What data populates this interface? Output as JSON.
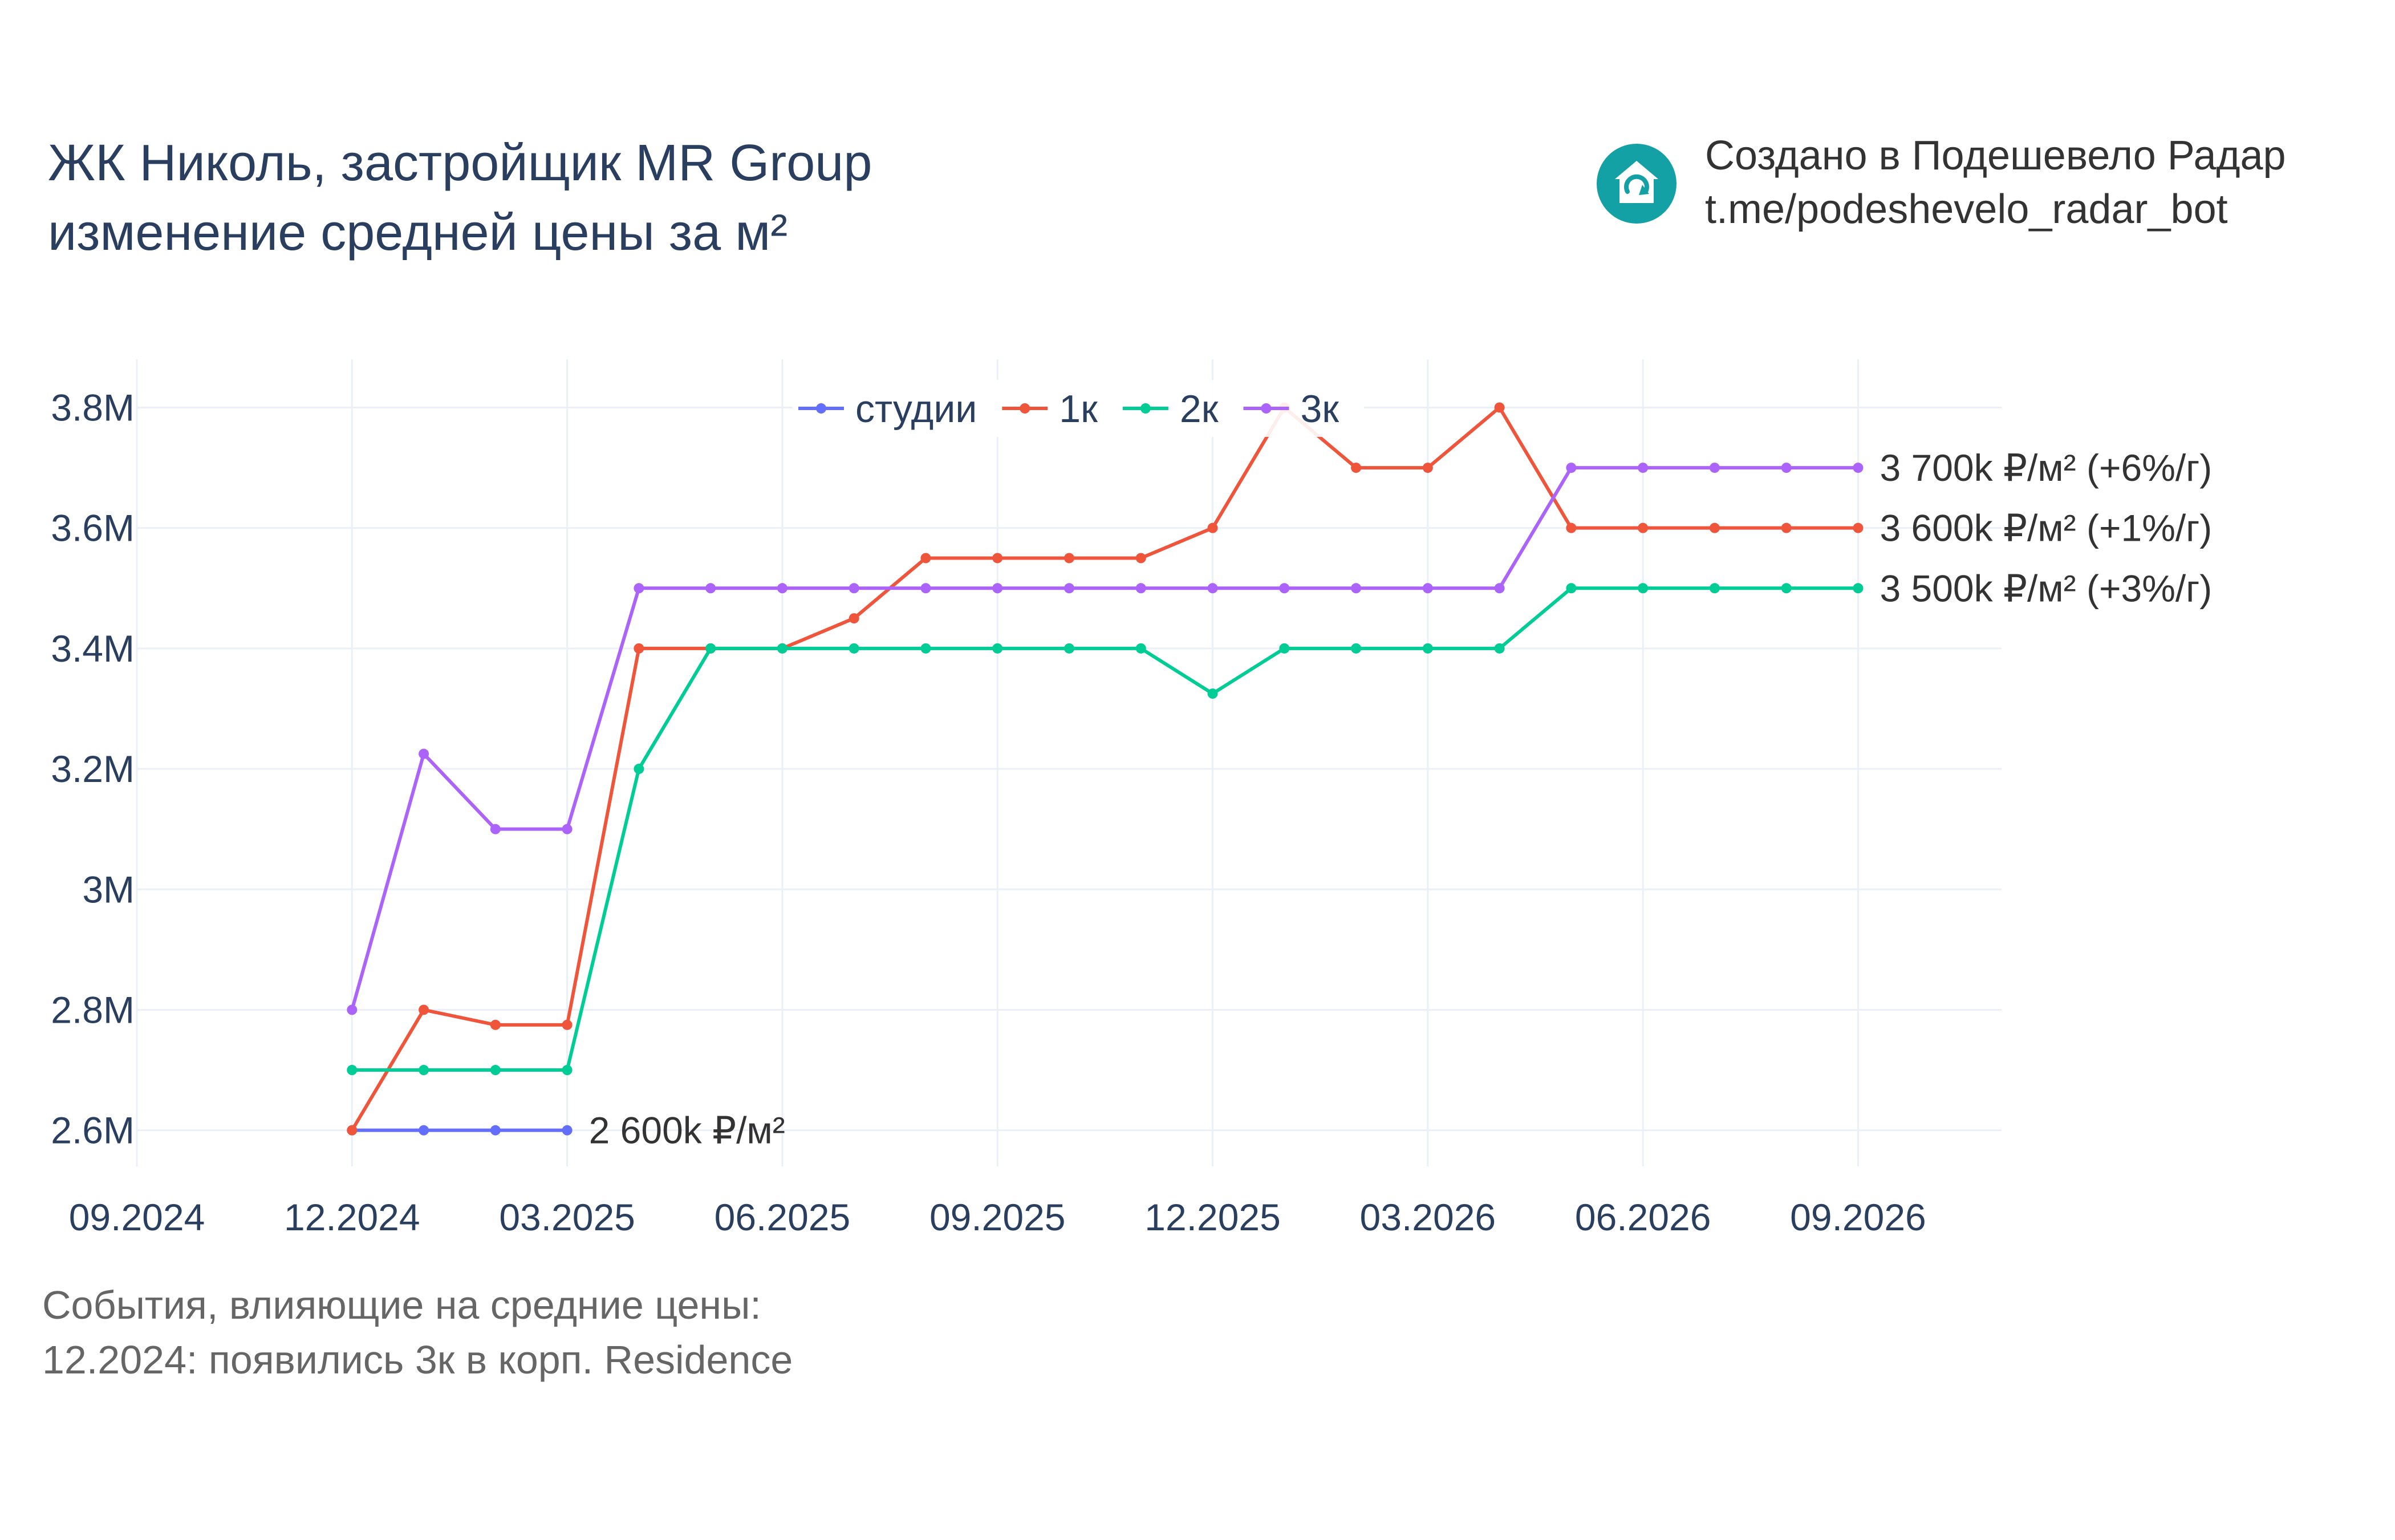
{
  "title": {
    "line1": "ЖК Николь, застройщик MR Group",
    "line2": "изменение средней цены за м²"
  },
  "brand": {
    "line1": "Создано в Подешевело Радар",
    "line2": "t.me/podeshevelo_radar_bot",
    "logo_color": "#14a1a5",
    "icon": "house-refresh-icon"
  },
  "events": {
    "heading": "События, влияющие на средние цены:",
    "items": [
      "12.2024: появились 3к в корп. Residence"
    ]
  },
  "chart_data": {
    "type": "line",
    "x_tick_labels": [
      "09.2024",
      "12.2024",
      "03.2025",
      "06.2025",
      "09.2025",
      "12.2025",
      "03.2026",
      "06.2026",
      "09.2026"
    ],
    "y_tick_labels": [
      "2.6M",
      "2.8M",
      "3M",
      "3.2M",
      "3.4M",
      "3.6M",
      "3.8M"
    ],
    "ylim": [
      2540000,
      3880000
    ],
    "xlim": [
      "2024-09",
      "2026-11"
    ],
    "grid": true,
    "legend_position": "top-center",
    "x": [
      "2024-12",
      "2025-01",
      "2025-02",
      "2025-03",
      "2025-04",
      "2025-05",
      "2025-06",
      "2025-07",
      "2025-08",
      "2025-09",
      "2025-10",
      "2025-11",
      "2025-12",
      "2026-01",
      "2026-02",
      "2026-03",
      "2026-04",
      "2026-05",
      "2026-06",
      "2026-07",
      "2026-08",
      "2026-09"
    ],
    "series": [
      {
        "name": "студии",
        "color": "#636efa",
        "values": [
          2600000,
          2600000,
          2600000,
          2600000,
          null,
          null,
          null,
          null,
          null,
          null,
          null,
          null,
          null,
          null,
          null,
          null,
          null,
          null,
          null,
          null,
          null,
          null
        ],
        "end_label": "2 600k ₽/м²"
      },
      {
        "name": "1к",
        "color": "#ef553b",
        "values": [
          2600000,
          2800000,
          2775000,
          2775000,
          3400000,
          3400000,
          3400000,
          3450000,
          3550000,
          3550000,
          3550000,
          3550000,
          3600000,
          3800000,
          3700000,
          3700000,
          3800000,
          3600000,
          3600000,
          3600000,
          3600000,
          3600000
        ],
        "end_label": "3 600k ₽/м² (+1%/г)"
      },
      {
        "name": "2к",
        "color": "#00cc96",
        "values": [
          2700000,
          2700000,
          2700000,
          2700000,
          3200000,
          3400000,
          3400000,
          3400000,
          3400000,
          3400000,
          3400000,
          3400000,
          3325000,
          3400000,
          3400000,
          3400000,
          3400000,
          3500000,
          3500000,
          3500000,
          3500000,
          3500000
        ],
        "end_label": "3 500k ₽/м² (+3%/г)"
      },
      {
        "name": "3к",
        "color": "#ab63fa",
        "values": [
          2800000,
          3225000,
          3100000,
          3100000,
          3500000,
          3500000,
          3500000,
          3500000,
          3500000,
          3500000,
          3500000,
          3500000,
          3500000,
          3500000,
          3500000,
          3500000,
          3500000,
          3700000,
          3700000,
          3700000,
          3700000,
          3700000
        ],
        "end_label": "3 700k ₽/м² (+6%/г)"
      }
    ]
  }
}
